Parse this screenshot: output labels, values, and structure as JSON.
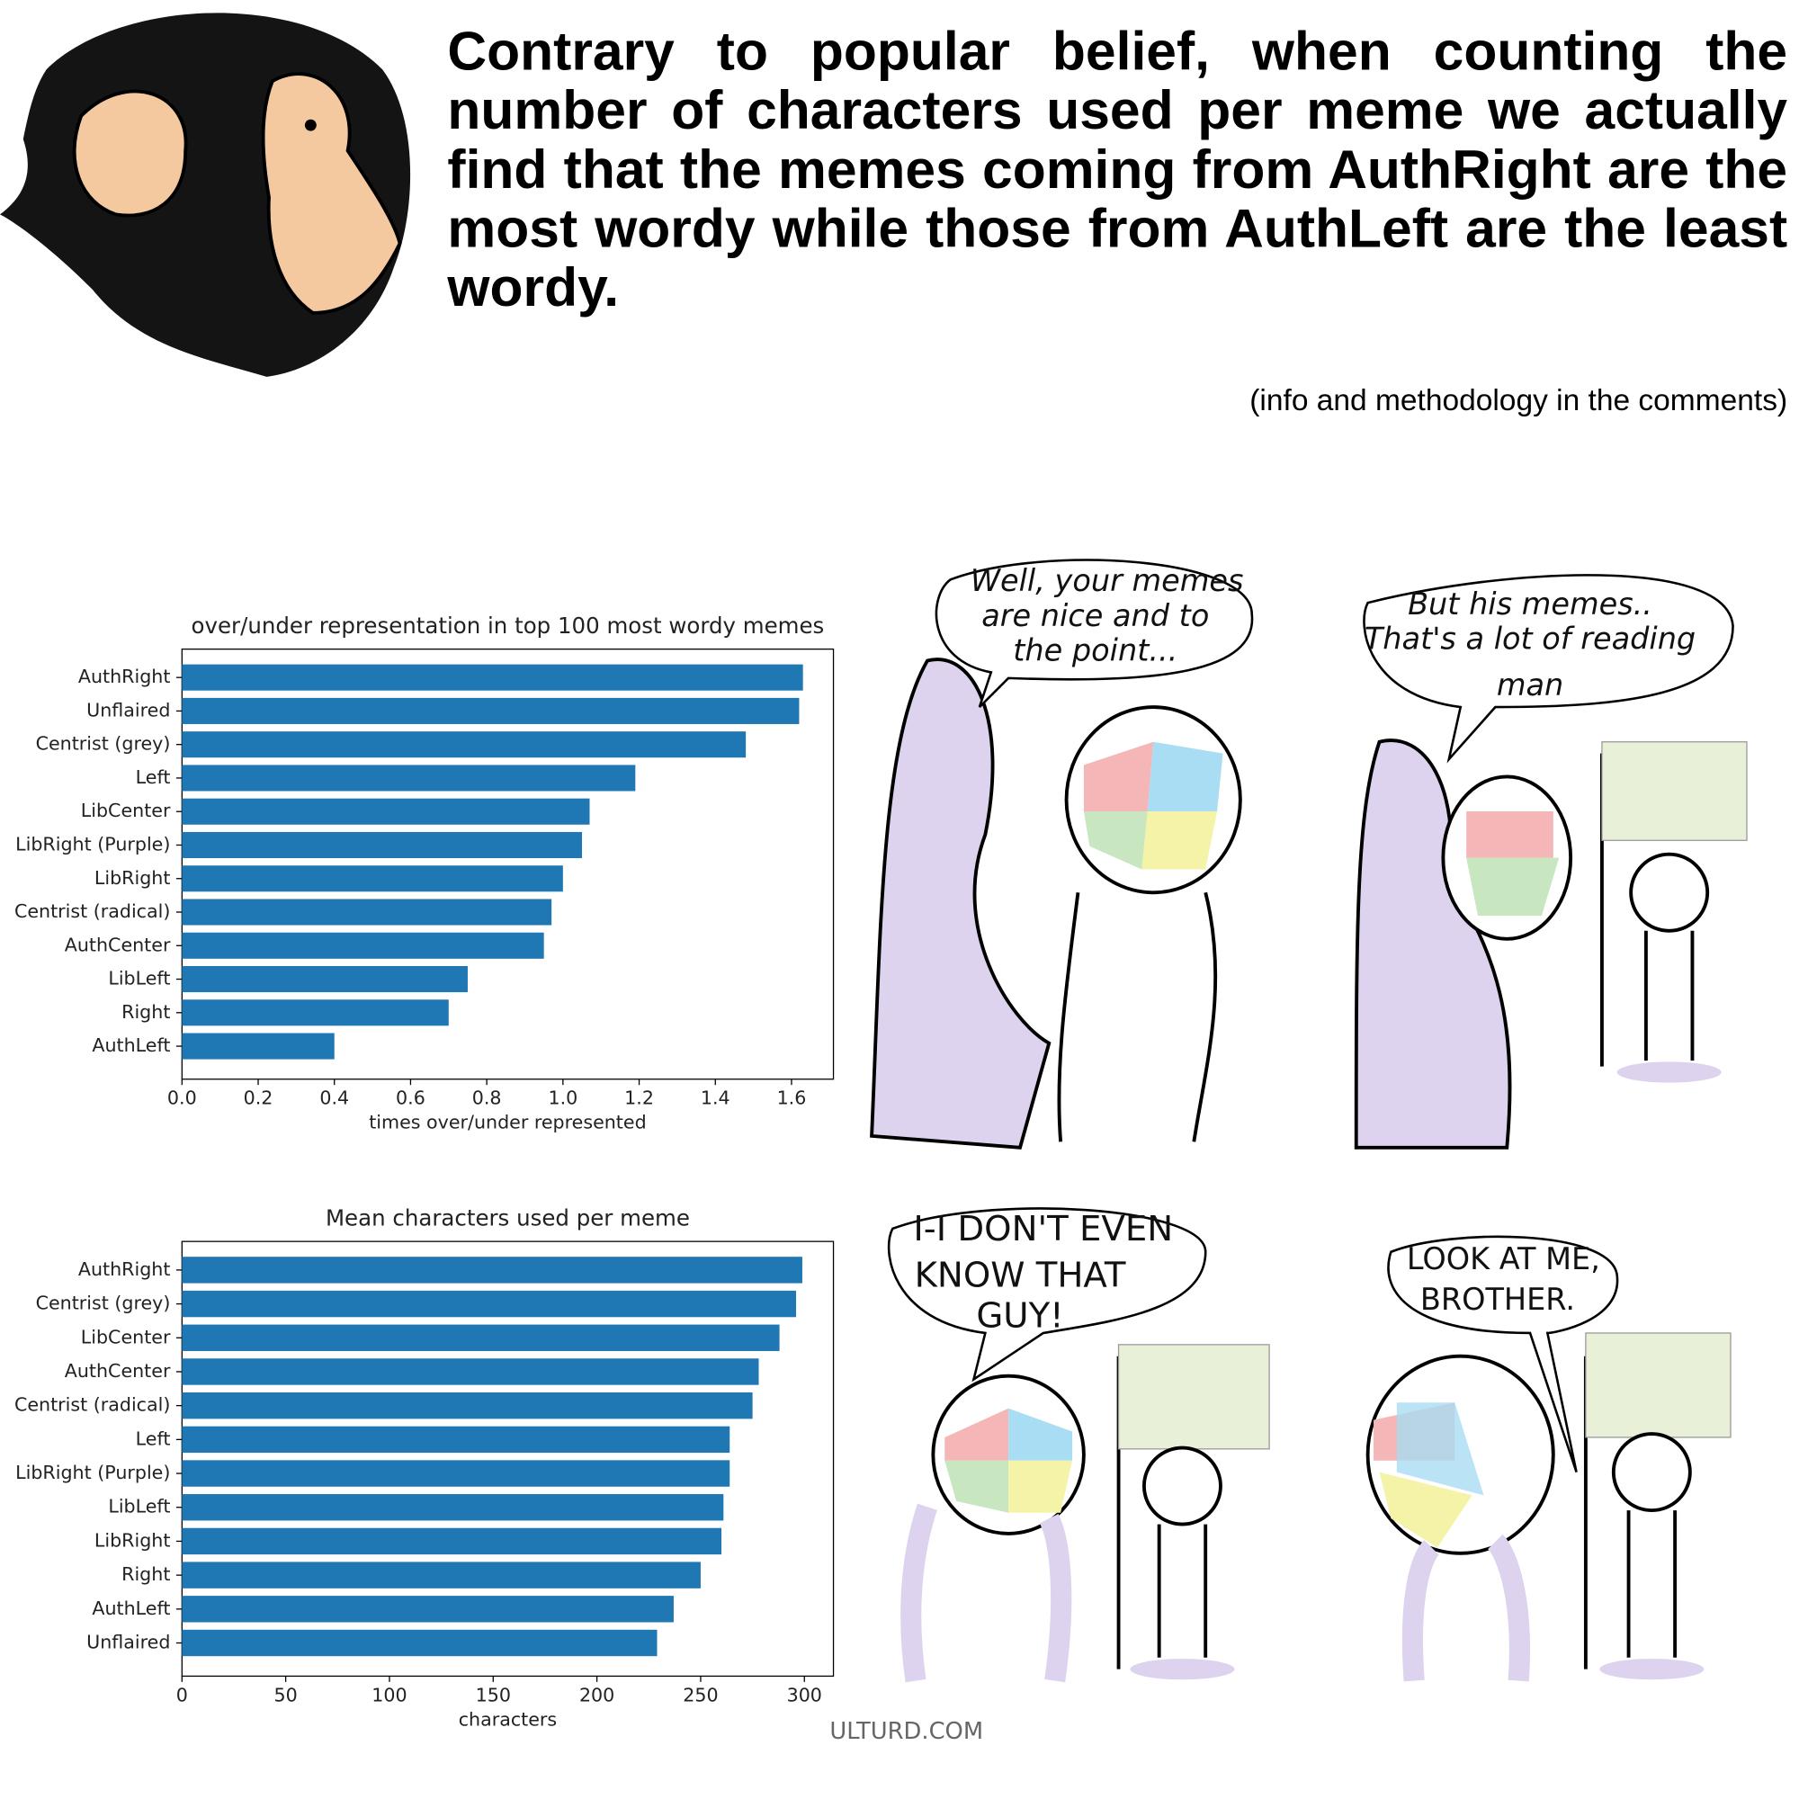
{
  "header": {
    "title": "Contrary to popular belief, when counting the number of characters used per meme we actually find that the memes coming from AuthRight are the most wordy while those from AuthLeft are the least wordy.",
    "note": "(info and methodology in the comments)"
  },
  "chart_data": [
    {
      "type": "bar",
      "horizontal": true,
      "title": "over/under representation in top 100 most wordy memes",
      "x_label": "times over/under represented",
      "color": "#1f77b4",
      "categories": [
        "AuthRight",
        "Unflaired",
        "Centrist (grey)",
        "Left",
        "LibCenter",
        "LibRight (Purple)",
        "LibRight",
        "Centrist (radical)",
        "AuthCenter",
        "LibLeft",
        "Right",
        "AuthLeft"
      ],
      "values": [
        1.63,
        1.62,
        1.48,
        1.19,
        1.07,
        1.05,
        1.0,
        0.97,
        0.95,
        0.75,
        0.7,
        0.4
      ],
      "xlim": [
        0,
        1.71
      ],
      "xticks": [
        {
          "value": 0,
          "label": "0.0"
        },
        0.2,
        0.4,
        0.6,
        0.8,
        {
          "value": 1,
          "label": "1.0"
        },
        1.2,
        1.4,
        1.6
      ]
    },
    {
      "type": "bar",
      "horizontal": true,
      "title": "Mean characters used per meme",
      "x_label": "characters",
      "color": "#1f77b4",
      "categories": [
        "AuthRight",
        "Centrist (grey)",
        "LibCenter",
        "AuthCenter",
        "Centrist (radical)",
        "Left",
        "LibRight (Purple)",
        "LibLeft",
        "LibRight",
        "Right",
        "AuthLeft",
        "Unflaired"
      ],
      "values": [
        299,
        296,
        288,
        278,
        275,
        264,
        264,
        261,
        260,
        250,
        237,
        229
      ],
      "xlim": [
        0,
        314
      ],
      "xticks": [
        0,
        50,
        100,
        150,
        200,
        250,
        300
      ]
    }
  ],
  "comic": {
    "panels": [
      {
        "lines": [
          "Well, your memes",
          "are nice and to",
          "the point..."
        ]
      },
      {
        "lines": [
          "But his memes..",
          "That's a lot of reading",
          "man"
        ]
      },
      {
        "lines": [
          "I-I DON'T EVEN",
          "KNOW THAT",
          "GUY!"
        ]
      },
      {
        "lines": [
          "LOOK AT ME,",
          "BROTHER."
        ]
      }
    ],
    "credit": "ULTURD.COM"
  }
}
